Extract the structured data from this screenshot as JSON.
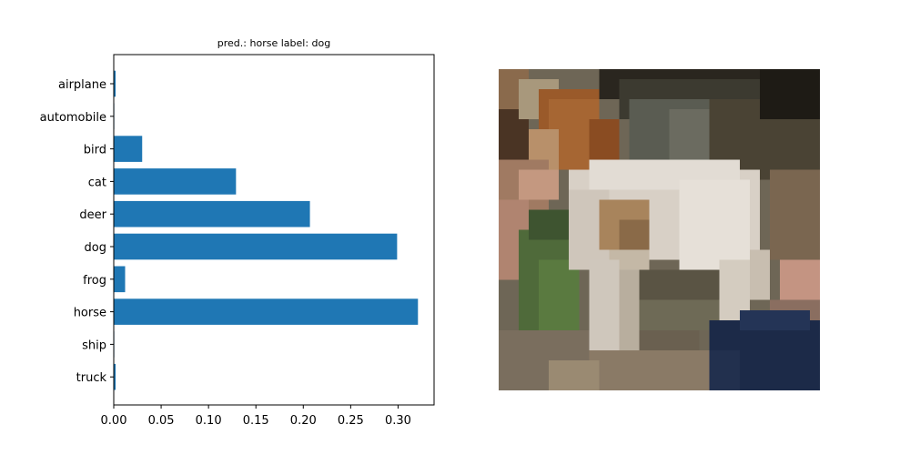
{
  "chart_data": {
    "type": "bar",
    "orientation": "horizontal",
    "title": "pred.: horse   label: dog",
    "categories": [
      "airplane",
      "automobile",
      "bird",
      "cat",
      "deer",
      "dog",
      "frog",
      "horse",
      "ship",
      "truck"
    ],
    "values": [
      0.002,
      0.0003,
      0.03,
      0.129,
      0.207,
      0.299,
      0.012,
      0.321,
      0.0005,
      0.002
    ],
    "xlim": [
      0,
      0.338
    ],
    "xticks": [
      0.0,
      0.05,
      0.1,
      0.15,
      0.2,
      0.25,
      0.3
    ],
    "xtick_labels": [
      "0.00",
      "0.05",
      "0.10",
      "0.15",
      "0.20",
      "0.25",
      "0.30"
    ],
    "xlabel": "",
    "ylabel": "",
    "grid": false,
    "bar_color": "#1f77b4"
  },
  "image_panel": {
    "description_icon": "pixelated-dog-photo"
  },
  "colors": {
    "bar": "#1f77b4",
    "axis": "#000000",
    "background": "#ffffff"
  }
}
